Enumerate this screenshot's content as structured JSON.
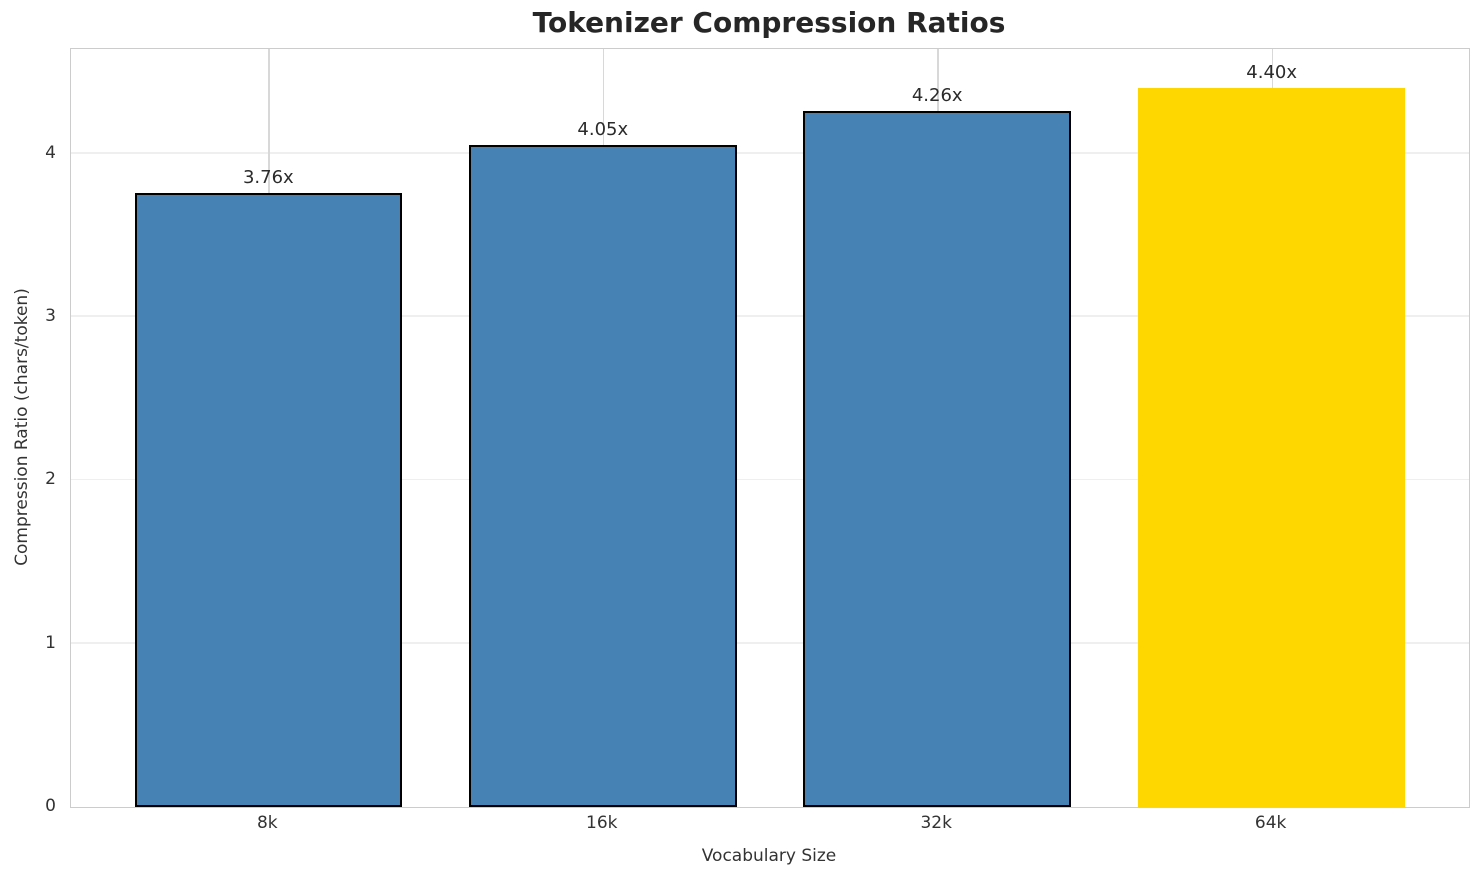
{
  "chart_data": {
    "type": "bar",
    "title": "Tokenizer Compression Ratios",
    "xlabel": "Vocabulary Size",
    "ylabel": "Compression Ratio (chars/token)",
    "categories": [
      "8k",
      "16k",
      "32k",
      "64k"
    ],
    "values": [
      3.76,
      4.05,
      4.26,
      4.4
    ],
    "bar_labels": [
      "3.76x",
      "4.05x",
      "4.26x",
      "4.40x"
    ],
    "yticks": [
      0,
      1,
      2,
      3,
      4
    ],
    "ylim": [
      0,
      4.64
    ],
    "xlim": [
      -0.59,
      3.59
    ],
    "bar_width": 0.8,
    "grid": true,
    "legend_position": "none",
    "highlight_index": 3,
    "colors": {
      "bar_default": "#4682B4",
      "bar_highlight": "#FFD700",
      "bar_edge": "#000000",
      "grid_horizontal": "#efefef",
      "grid_vertical": "#d8d8d8",
      "spine": "#cccccc",
      "text": "#333333",
      "title": "#262626"
    }
  }
}
